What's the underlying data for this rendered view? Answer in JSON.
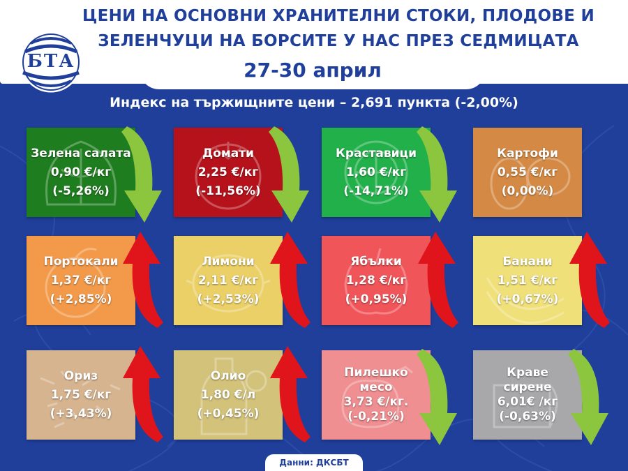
{
  "header": {
    "title_line1": "ЦЕНИ НА ОСНОВНИ ХРАНИТЕЛНИ СТОКИ, ПЛОДОВЕ И",
    "title_line2": "ЗЕЛЕНЧУЦИ НА БОРСИТЕ У НАС ПРЕЗ СЕДМИЦАТА",
    "date": "27-30 април",
    "logo_text": "БТА"
  },
  "subtitle": "Индекс на тържищните цени – 2,691 пункта (-2,00%)",
  "colors": {
    "background": "#1f3f9a",
    "arrow_down": "#8cc63f",
    "arrow_up": "#e0141b"
  },
  "products": [
    {
      "name": "Зелена салата",
      "price": "0,90 €/кг",
      "change": "(-5,26%)",
      "trend": "down",
      "color": "#1e7d1e",
      "icon": "lettuce-icon"
    },
    {
      "name": "Домати",
      "price": "2,25 €/кг",
      "change": "(-11,56%)",
      "trend": "down",
      "color": "#b5121b",
      "icon": "tomato-icon"
    },
    {
      "name": "Краставици",
      "price": "1,60 €/кг",
      "change": "(-14,71%)",
      "trend": "down",
      "color": "#22b04b",
      "icon": "cucumber-icon"
    },
    {
      "name": "Картофи",
      "price": "0,55 €/кг",
      "change": "(0,00%)",
      "trend": "none",
      "color": "#d48a45",
      "icon": "potato-icon"
    },
    {
      "name": "Портокали",
      "price": "1,37 €/кг",
      "change": "(+2,85%)",
      "trend": "up",
      "color": "#f39a4a",
      "icon": "orange-icon"
    },
    {
      "name": "Лимони",
      "price": "2,11 €/кг",
      "change": "(+2,53%)",
      "trend": "up",
      "color": "#ebd067",
      "icon": "lemon-icon"
    },
    {
      "name": "Ябълки",
      "price": "1,28 €/кг",
      "change": "(+0,95%)",
      "trend": "up",
      "color": "#f0555a",
      "icon": "apple-icon"
    },
    {
      "name": "Банани",
      "price": "1,51 €/кг",
      "change": "(+0,67%)",
      "trend": "up",
      "color": "#f0e07a",
      "icon": "banana-icon"
    },
    {
      "name": "Ориз",
      "price": "1,75 €/кг",
      "change": "(+3,43%)",
      "trend": "up",
      "color": "#d6b48f",
      "icon": "rice-icon"
    },
    {
      "name": "Олио",
      "price": "1,80 €/л",
      "change": "(+0,45%)",
      "trend": "up",
      "color": "#d3c27a",
      "icon": "oil-bottle-icon"
    },
    {
      "name": "Пилешко месо",
      "price": "3,73 €/кг.",
      "change": "(-0,21%)",
      "trend": "down",
      "color": "#ef8f91",
      "icon": "chicken-icon"
    },
    {
      "name": "Краве сирене",
      "price": "6,01€ /кг",
      "change": "(-0,63%)",
      "trend": "down",
      "color": "#a8a8aa",
      "icon": "cheese-icon"
    }
  ],
  "source": "Данни: ДКСБТ"
}
